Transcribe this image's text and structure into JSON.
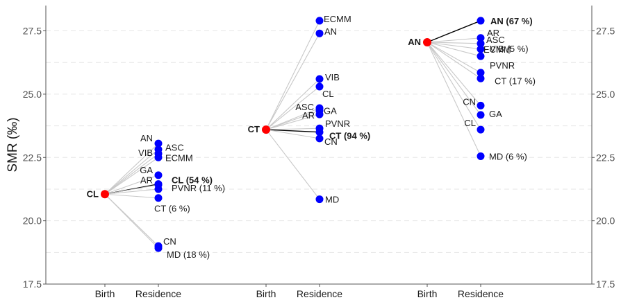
{
  "chart_data": {
    "type": "scatter",
    "ylabel": "SMR (‰)",
    "ylim": [
      17.5,
      28.5
    ],
    "yticks": [
      17.5,
      20.0,
      22.5,
      25.0,
      27.5
    ],
    "ytick_labels": [
      "17.5",
      "20.0",
      "22.5",
      "25.0",
      "27.5"
    ],
    "x_axis_labels": [
      "Birth",
      "Residence",
      "Birth",
      "Residence",
      "Birth",
      "Residence"
    ],
    "grid": "horizontal dashed",
    "colors": {
      "origin": "#ff0000",
      "destination": "#0000ff",
      "link": "#c8c8c8",
      "highlight_link": "#000000"
    },
    "groups": [
      {
        "origin": {
          "label": "CL",
          "y": 21.05
        },
        "points": [
          {
            "label": "AN",
            "y": 23.05
          },
          {
            "label": "ASC",
            "y": 22.82
          },
          {
            "label": "VIB",
            "y": 22.65
          },
          {
            "label": "ECMM",
            "y": 22.5
          },
          {
            "label": "GA",
            "y": 21.8
          },
          {
            "label": "CL (54 %)",
            "y": 21.45,
            "highlight": true
          },
          {
            "label": "AR",
            "y": 21.42
          },
          {
            "label": "PVNR (11 %)",
            "y": 21.25
          },
          {
            "label": "CT (6 %)",
            "y": 20.9
          },
          {
            "label": "CN",
            "y": 19.0
          },
          {
            "label": "MD (18 %)",
            "y": 18.92
          }
        ]
      },
      {
        "origin": {
          "label": "CT",
          "y": 23.6
        },
        "points": [
          {
            "label": "ECMM",
            "y": 27.9
          },
          {
            "label": "AN",
            "y": 27.4
          },
          {
            "label": "VIB",
            "y": 25.6
          },
          {
            "label": "CL",
            "y": 25.3
          },
          {
            "label": "ASC",
            "y": 24.45
          },
          {
            "label": "GA",
            "y": 24.35
          },
          {
            "label": "AR",
            "y": 24.2
          },
          {
            "label": "PVNR",
            "y": 23.65
          },
          {
            "label": "CT (94 %)",
            "y": 23.5,
            "highlight": true
          },
          {
            "label": "CN",
            "y": 23.25
          },
          {
            "label": "MD",
            "y": 20.85
          }
        ]
      },
      {
        "origin": {
          "label": "AN",
          "y": 27.05
        },
        "points": [
          {
            "label": "AN (67 %)",
            "y": 27.9,
            "highlight": true
          },
          {
            "label": "AR",
            "y": 27.22
          },
          {
            "label": "ASC",
            "y": 27.0
          },
          {
            "label": "VIB (5 %)",
            "y": 26.78
          },
          {
            "label": "ECMM",
            "y": 26.5
          },
          {
            "label": "PVNR",
            "y": 25.85
          },
          {
            "label": "CT (17 %)",
            "y": 25.62
          },
          {
            "label": "CN",
            "y": 24.55
          },
          {
            "label": "GA",
            "y": 24.18
          },
          {
            "label": "CL",
            "y": 23.6
          },
          {
            "label": "MD (6 %)",
            "y": 22.55
          }
        ]
      }
    ]
  }
}
